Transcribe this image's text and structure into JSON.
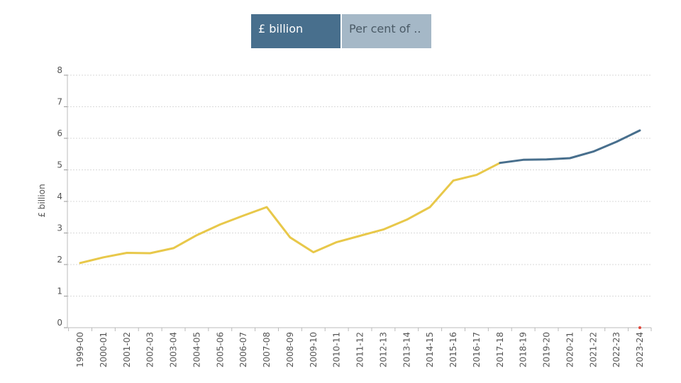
{
  "toggle": {
    "option_1": "£ billion",
    "option_2": "Per cent of .."
  },
  "colors": {
    "outturn": "#e8c84a",
    "forecast": "#486f8d",
    "marker": "#e0463a"
  },
  "chart_data": {
    "type": "line",
    "ylabel": "£ billion",
    "ylim": [
      0,
      8
    ],
    "yticks": [
      0,
      1,
      2,
      3,
      4,
      5,
      6,
      7,
      8
    ],
    "grid": true,
    "categories": [
      "1999-00",
      "2000-01",
      "2001-02",
      "2002-03",
      "2003-04",
      "2004-05",
      "2005-06",
      "2006-07",
      "2007-08",
      "2008-09",
      "2009-10",
      "2010-11",
      "2011-12",
      "2012-13",
      "2013-14",
      "2014-15",
      "2015-16",
      "2016-17",
      "2017-18",
      "2018-19",
      "2019-20",
      "2020-21",
      "2021-22",
      "2022-23",
      "2023-24"
    ],
    "series": [
      {
        "values": [
          2.05,
          2.23,
          2.37,
          2.36,
          2.52,
          2.93,
          3.27,
          3.55,
          3.82,
          2.86,
          2.39,
          2.71,
          2.91,
          3.11,
          3.42,
          3.82,
          4.66,
          4.84,
          5.22,
          null,
          null,
          null,
          null,
          null,
          null
        ]
      },
      {
        "values": [
          null,
          null,
          null,
          null,
          null,
          null,
          null,
          null,
          null,
          null,
          null,
          null,
          null,
          null,
          null,
          null,
          null,
          null,
          5.22,
          5.32,
          5.33,
          5.37,
          5.58,
          5.89,
          6.25
        ]
      }
    ]
  }
}
